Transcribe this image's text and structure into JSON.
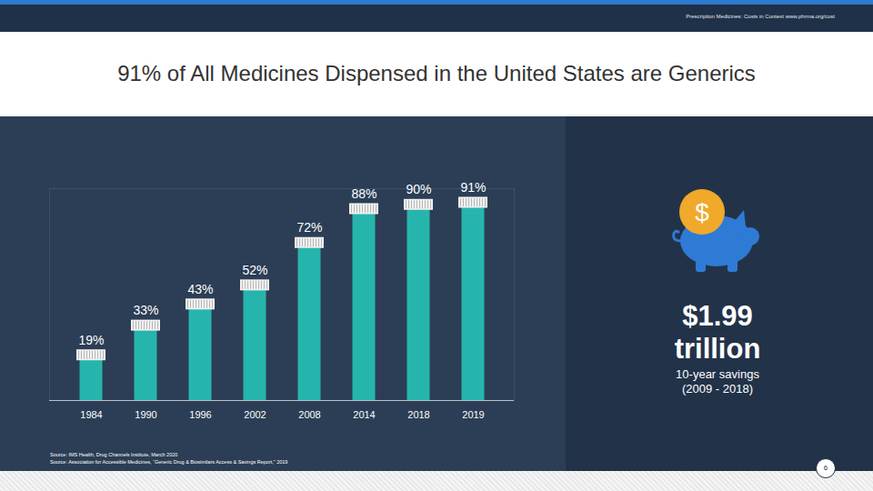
{
  "header": "Prescription Medicines: Costs in Context  www.phrma.org/cost",
  "chart_data": {
    "type": "bar",
    "title": "91% of All Medicines Dispensed in the United States are Generics",
    "categories": [
      "1984",
      "1990",
      "1996",
      "2002",
      "2008",
      "2014",
      "2018",
      "2019"
    ],
    "values": [
      19,
      33,
      43,
      52,
      72,
      88,
      90,
      91
    ],
    "value_labels": [
      "19%",
      "33%",
      "43%",
      "52%",
      "72%",
      "88%",
      "90%",
      "91%"
    ],
    "color": "#26b5ad",
    "ylim": [
      0,
      100
    ],
    "data_labels": true,
    "tick_labels": "x",
    "grid": false
  },
  "savings": {
    "icon_symbol": "$",
    "amount": [
      "$1.99",
      "trillion"
    ],
    "caption": [
      "10-year savings",
      "(2009 - 2018)"
    ]
  },
  "sources": [
    "Source: IMS Health, Drug Channels Institute, March 2020",
    "Source: Association for Accessible Medicines, “Generic Drug & Biosimilars Access & Savings Report,” 2019"
  ],
  "page_number": 6
}
